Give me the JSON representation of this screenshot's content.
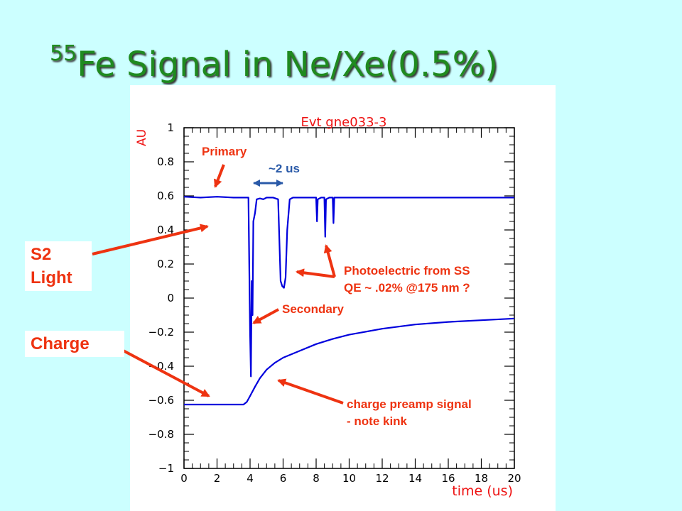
{
  "slide": {
    "title_sup": "55",
    "title_main": "Fe Signal in Ne/Xe(0.5%)"
  },
  "labels": {
    "s2_light_line1": "S2",
    "s2_light_line2": "Light",
    "charge": "Charge",
    "primary": "Primary",
    "interval": "~2 us",
    "photoelectric_line1": "Photoelectric from SS",
    "photoelectric_line2": "QE ~ .02% @175 nm ?",
    "secondary": "Secondary",
    "charge_preamp_line1": "charge preamp signal",
    "charge_preamp_line2": "- note kink"
  },
  "colors": {
    "background": "#ccffff",
    "title": "#1f8a1f",
    "trace": "#0000dd",
    "annotation": "#ee3311",
    "interval_arrow": "#2a5aa8",
    "plot_title": "#ee1111"
  },
  "chart_data": {
    "type": "line",
    "title": "Evt gne033-3",
    "xlabel": "time (us)",
    "ylabel": "AU",
    "xlim": [
      0,
      20
    ],
    "ylim": [
      -1,
      1
    ],
    "x_ticks": [
      "0",
      "2",
      "4",
      "6",
      "8",
      "10",
      "12",
      "14",
      "16",
      "18",
      "20"
    ],
    "y_ticks": [
      "1",
      "0.8",
      "0.6",
      "0.4",
      "0.2",
      "0",
      "−0.2",
      "−0.4",
      "−0.6",
      "−0.8",
      "−1"
    ],
    "y_tick_values": [
      1,
      0.8,
      0.6,
      0.4,
      0.2,
      0,
      -0.2,
      -0.4,
      -0.6,
      -0.8,
      -1
    ],
    "grid": false,
    "series": [
      {
        "x": [
          0,
          1,
          2,
          3,
          3.9,
          4.0,
          4.05,
          4.1,
          4.15,
          4.2,
          4.3,
          4.4,
          4.6,
          4.8,
          5.0,
          5.4,
          5.7,
          5.85,
          5.95,
          6.05,
          6.15,
          6.25,
          6.4,
          6.6,
          7.0,
          7.5,
          8.0,
          8.05,
          8.1,
          8.3,
          8.5,
          8.55,
          8.6,
          8.8,
          9.0,
          9.05,
          9.1,
          9.3,
          10,
          12,
          14,
          16,
          18,
          20
        ],
        "y": [
          0.595,
          0.59,
          0.595,
          0.59,
          0.59,
          -0.2,
          -0.46,
          0.1,
          -0.1,
          0.45,
          0.5,
          0.58,
          0.585,
          0.58,
          0.59,
          0.59,
          0.58,
          0.1,
          0.07,
          0.06,
          0.12,
          0.4,
          0.58,
          0.59,
          0.59,
          0.59,
          0.59,
          0.45,
          0.58,
          0.59,
          0.59,
          0.36,
          0.58,
          0.59,
          0.59,
          0.44,
          0.59,
          0.59,
          0.59,
          0.59,
          0.59,
          0.59,
          0.59,
          0.59
        ]
      },
      {
        "x": [
          0,
          1,
          2,
          3,
          3.6,
          3.8,
          4.0,
          4.3,
          4.6,
          5,
          5.5,
          6,
          7,
          8,
          9,
          10,
          12,
          14,
          16,
          18,
          20
        ],
        "y": [
          -0.625,
          -0.625,
          -0.625,
          -0.625,
          -0.625,
          -0.61,
          -0.575,
          -0.52,
          -0.47,
          -0.42,
          -0.38,
          -0.35,
          -0.31,
          -0.27,
          -0.24,
          -0.215,
          -0.18,
          -0.155,
          -0.14,
          -0.13,
          -0.12
        ]
      }
    ]
  }
}
